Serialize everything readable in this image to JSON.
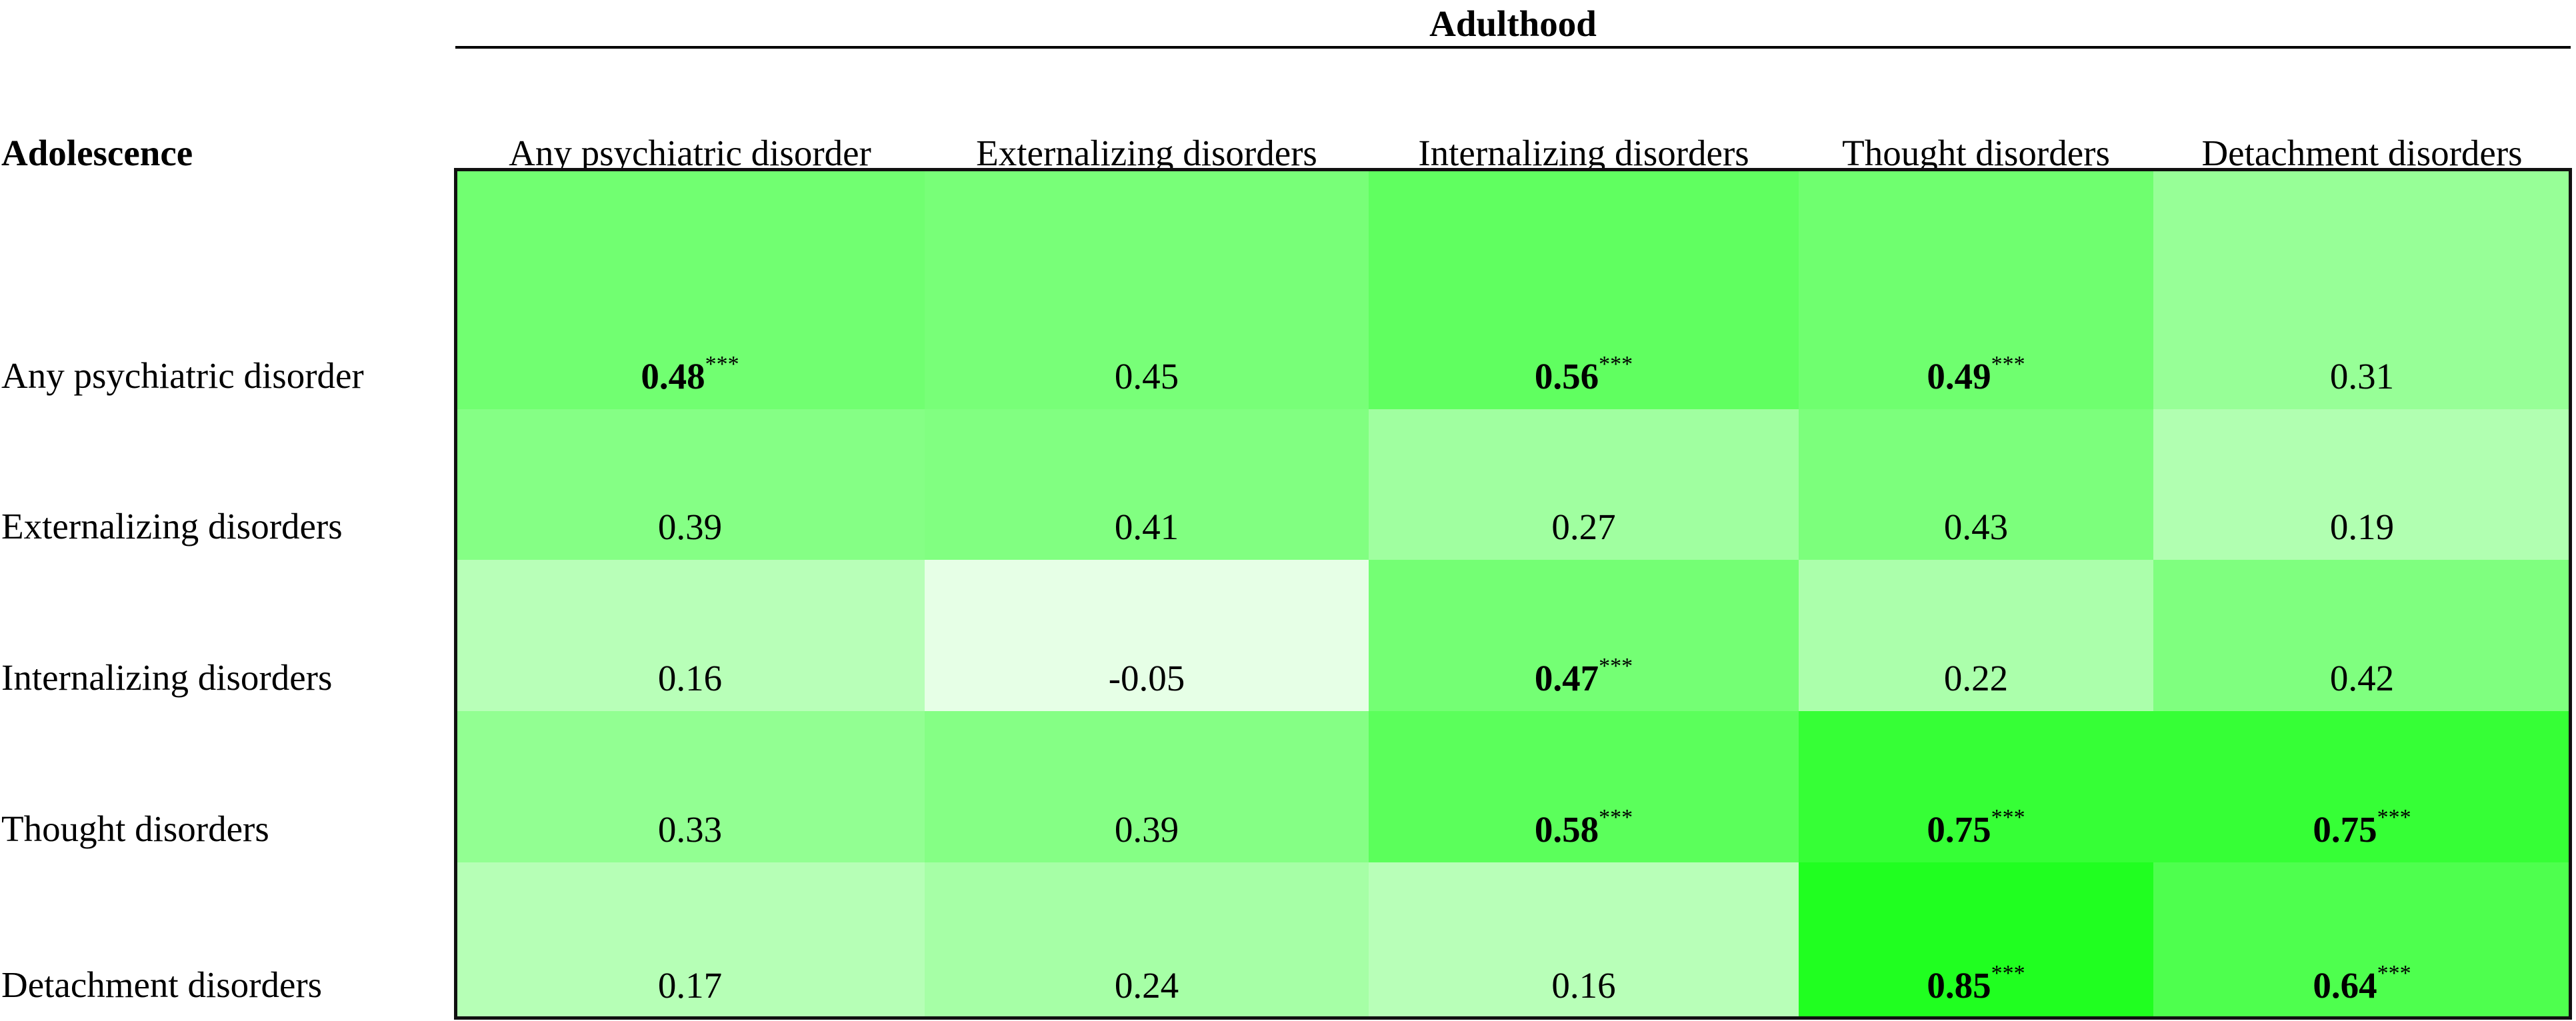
{
  "header": {
    "title": "Adulthood",
    "row_header": "Adolescence"
  },
  "table": {
    "columns": [
      "Any psychiatric disorder",
      "Externalizing disorders",
      "Internalizing disorders",
      "Thought disorders",
      "Detachment disorders"
    ],
    "rows": [
      {
        "label": "Any psychiatric disorder",
        "cells": [
          {
            "value": 0.48,
            "sig": "***"
          },
          {
            "value": 0.45
          },
          {
            "value": 0.56,
            "sig": "***"
          },
          {
            "value": 0.49,
            "sig": "***"
          },
          {
            "value": 0.31
          }
        ]
      },
      {
        "label": "Externalizing disorders",
        "cells": [
          {
            "value": 0.39
          },
          {
            "value": 0.41
          },
          {
            "value": 0.27
          },
          {
            "value": 0.43
          },
          {
            "value": 0.19
          }
        ]
      },
      {
        "label": "Internalizing disorders",
        "cells": [
          {
            "value": 0.16
          },
          {
            "value": -0.05
          },
          {
            "value": 0.47,
            "sig": "***"
          },
          {
            "value": 0.22
          },
          {
            "value": 0.42
          }
        ]
      },
      {
        "label": "Thought disorders",
        "cells": [
          {
            "value": 0.33
          },
          {
            "value": 0.39
          },
          {
            "value": 0.58,
            "sig": "***"
          },
          {
            "value": 0.75,
            "sig": "***"
          },
          {
            "value": 0.75,
            "sig": "***"
          }
        ]
      },
      {
        "label": "Detachment disorders",
        "cells": [
          {
            "value": 0.17
          },
          {
            "value": 0.24
          },
          {
            "value": 0.16
          },
          {
            "value": 0.85,
            "sig": "***"
          },
          {
            "value": 0.64,
            "sig": "***"
          }
        ]
      }
    ]
  }
}
